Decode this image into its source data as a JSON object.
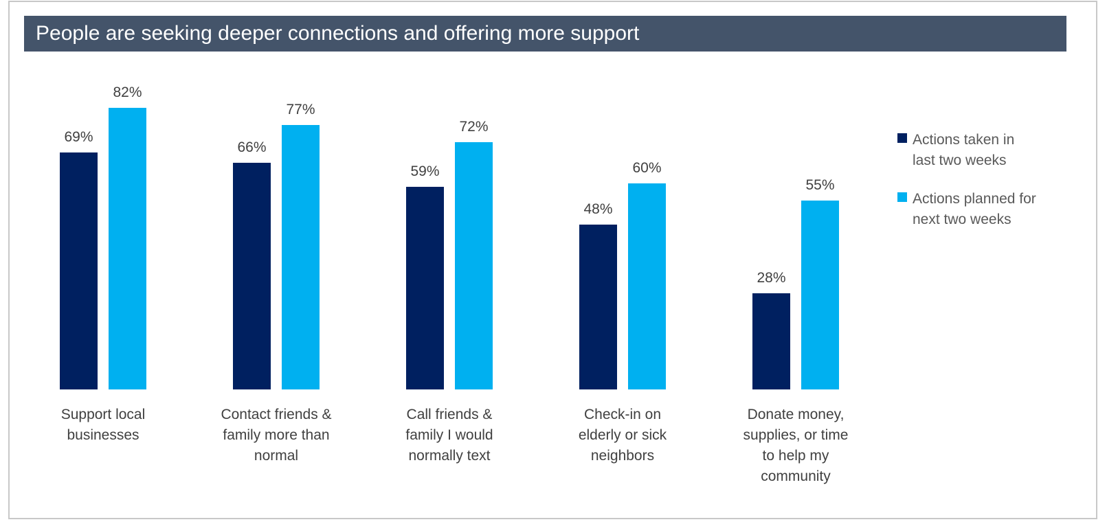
{
  "chart_data": {
    "type": "bar",
    "title": "People are seeking deeper connections and offering more support",
    "categories": [
      [
        "Support local",
        "businesses"
      ],
      [
        "Contact friends &",
        "family more than",
        "normal"
      ],
      [
        "Call friends &",
        "family I would",
        "normally text"
      ],
      [
        "Check-in on",
        "elderly or sick",
        "neighbors"
      ],
      [
        "Donate money,",
        "supplies, or time",
        "to help my",
        "community"
      ]
    ],
    "series": [
      {
        "name": "Actions taken in last two weeks",
        "legend_lines": [
          "Actions taken in",
          "last two weeks"
        ],
        "color": "#002060",
        "values": [
          69,
          66,
          59,
          48,
          28
        ]
      },
      {
        "name": "Actions planned for next two weeks",
        "legend_lines": [
          "Actions planned for",
          "next two weeks"
        ],
        "color": "#00b0f0",
        "values": [
          82,
          77,
          72,
          60,
          55
        ]
      }
    ],
    "value_format": "percent",
    "ylim": [
      0,
      100
    ],
    "grid": false,
    "axes_visible": false,
    "legend": "right"
  }
}
